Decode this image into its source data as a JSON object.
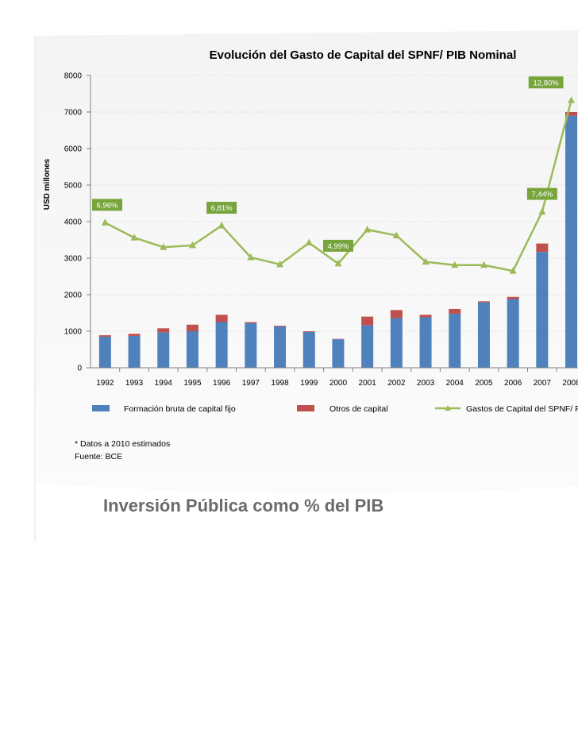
{
  "chart_data": {
    "type": "bar",
    "title": "Evolución del Gasto de Capital del SPNF/ PIB Nominal",
    "ylabel": "USD millones",
    "xlabel": "",
    "ylim": [
      0,
      8000
    ],
    "yticks": [
      "0",
      "1000",
      "2000",
      "3000",
      "4000",
      "5000",
      "6000",
      "7000",
      "8000"
    ],
    "categories": [
      "1992",
      "1993",
      "1994",
      "1995",
      "1996",
      "1997",
      "1998",
      "1999",
      "2000",
      "2001",
      "2002",
      "2003",
      "2004",
      "2005",
      "2006",
      "2007",
      "2008"
    ],
    "series": [
      {
        "name": "Formación bruta de capital fijo",
        "kind": "bar-stack",
        "color": "#4f81bd",
        "values": [
          850,
          870,
          970,
          1000,
          1250,
          1220,
          1130,
          980,
          780,
          1160,
          1360,
          1380,
          1480,
          1790,
          1880,
          3170,
          6900
        ]
      },
      {
        "name": "Otros de capital",
        "kind": "bar-stack",
        "color": "#c0504d",
        "values": [
          40,
          60,
          110,
          180,
          200,
          30,
          20,
          20,
          10,
          240,
          220,
          70,
          130,
          30,
          60,
          230,
          100
        ]
      },
      {
        "name": "Gastos de Capital del SPNF/ PIB",
        "kind": "line",
        "color": "#9bbb59",
        "values": [
          3970,
          3560,
          3300,
          3350,
          3890,
          3020,
          2830,
          3420,
          2850,
          3780,
          3620,
          2900,
          2810,
          2810,
          2650,
          4270,
          7320
        ]
      }
    ],
    "annotations": [
      {
        "category": "1992",
        "text": "6,96%"
      },
      {
        "category": "1996",
        "text": "6,81%"
      },
      {
        "category": "2000",
        "text": "4,99%"
      },
      {
        "category": "2007",
        "text": "7,44%"
      },
      {
        "category": "2008",
        "text": "12,80%"
      }
    ],
    "notes": [
      "* Datos a 2010 estimados",
      "Fuente: BCE"
    ]
  },
  "caption": "Inversión Pública como % del PIB",
  "colors": {
    "bar_main": "#4f81bd",
    "bar_other": "#c0504d",
    "line": "#9bbb59",
    "label_bg": "#77a53c",
    "caption": "#6b6b6b"
  }
}
